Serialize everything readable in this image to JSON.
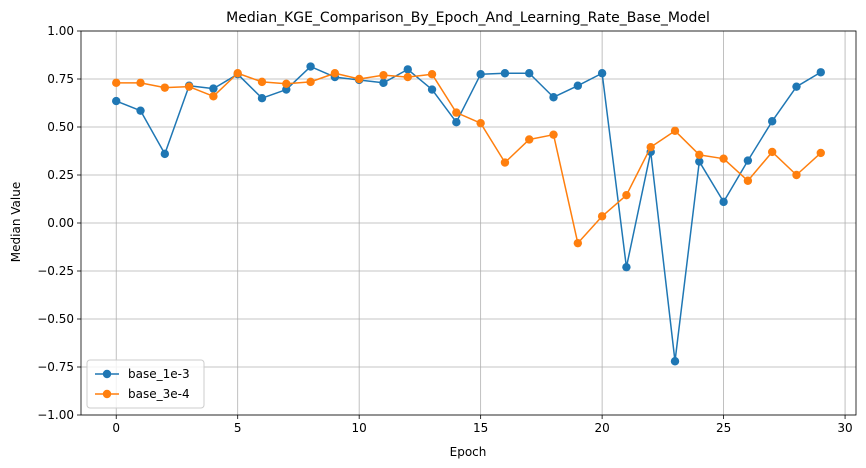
{
  "chart_data": {
    "type": "line",
    "title": "Median_KGE_Comparison_By_Epoch_And_Learning_Rate_Base_Model",
    "xlabel": "Epoch",
    "ylabel": "Median Value",
    "xlim": [
      -1.45,
      30.45
    ],
    "ylim": [
      -1.0,
      1.0
    ],
    "xticks": [
      0,
      5,
      10,
      15,
      20,
      25,
      30
    ],
    "yticks": [
      -1.0,
      -0.75,
      -0.5,
      -0.25,
      0.0,
      0.25,
      0.5,
      0.75,
      1.0
    ],
    "ytick_labels": [
      "−1.00",
      "−0.75",
      "−0.50",
      "−0.25",
      "0.00",
      "0.25",
      "0.50",
      "0.75",
      "1.00"
    ],
    "grid": true,
    "legend_position": "lower-left",
    "x": [
      0,
      1,
      2,
      3,
      4,
      5,
      6,
      7,
      8,
      9,
      10,
      11,
      12,
      13,
      14,
      15,
      16,
      17,
      18,
      19,
      20,
      21,
      22,
      23,
      24,
      25,
      26,
      27,
      28,
      29
    ],
    "series": [
      {
        "name": "base_1e-3",
        "color": "#1f77b4",
        "values": [
          0.635,
          0.585,
          0.36,
          0.715,
          0.7,
          0.775,
          0.65,
          0.695,
          0.815,
          0.76,
          0.745,
          0.73,
          0.8,
          0.695,
          0.525,
          0.775,
          0.78,
          0.78,
          0.655,
          0.715,
          0.78,
          -0.23,
          0.37,
          -0.72,
          0.32,
          0.11,
          0.325,
          0.53,
          0.71,
          0.785
        ]
      },
      {
        "name": "base_3e-4",
        "color": "#ff7f0e",
        "values": [
          0.73,
          0.73,
          0.705,
          0.71,
          0.66,
          0.78,
          0.735,
          0.725,
          0.735,
          0.78,
          0.75,
          0.77,
          0.76,
          0.775,
          0.575,
          0.52,
          0.315,
          0.435,
          0.46,
          -0.105,
          0.035,
          0.145,
          0.395,
          0.48,
          0.355,
          0.335,
          0.22,
          0.37,
          0.25,
          0.365
        ]
      }
    ]
  }
}
